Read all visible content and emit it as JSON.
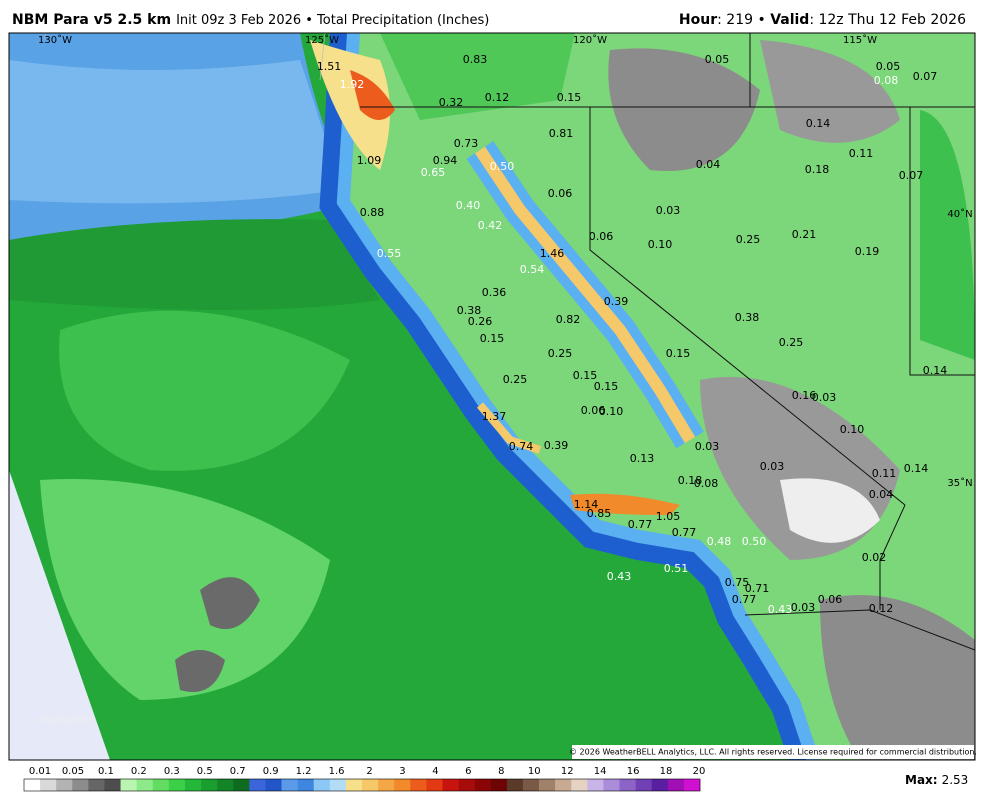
{
  "header": {
    "model": "NBM Para v5 2.5 km",
    "info": "Init 09z 3 Feb 2026 • Total Precipitation (Inches)",
    "hour_key": "Hour",
    "hour": ": 219 • ",
    "valid_key": "Valid",
    "valid": ": 12z Thu 12 Feb 2026"
  },
  "map": {
    "grid_labels": [
      "130˚W",
      "125˚W",
      "120˚W",
      "115˚W",
      "40˚N",
      "35˚N"
    ],
    "labels": [
      "0.83",
      "1.51",
      "1.92",
      "0.32",
      "0.12",
      "0.15",
      "0.05",
      "0.05",
      "0.08",
      "0.07",
      "0.81",
      "0.14",
      "0.73",
      "1.09",
      "0.94",
      "0.65",
      "0.50",
      "0.04",
      "0.18",
      "0.11",
      "0.07",
      "0.06",
      "0.40",
      "0.03",
      "0.88",
      "0.42",
      "0.06",
      "0.10",
      "0.25",
      "0.21",
      "0.19",
      "0.55",
      "1.46",
      "0.54",
      "0.36",
      "0.39",
      "0.38",
      "0.26",
      "0.82",
      "0.38",
      "0.15",
      "0.25",
      "0.15",
      "0.25",
      "0.14",
      "0.25",
      "0.15",
      "0.15",
      "0.16",
      "0.03",
      "0.06",
      "0.10",
      "1.37",
      "0.10",
      "0.74",
      "0.39",
      "0.03",
      "0.13",
      "0.03",
      "0.11",
      "0.14",
      "0.18",
      "0.08",
      "0.04",
      "1.14",
      "0.85",
      "1.05",
      "0.77",
      "0.77",
      "0.48",
      "0.50",
      "0.02",
      "0.43",
      "0.51",
      "0.75",
      "0.71",
      "0.77",
      "0.06",
      "0.43",
      "0.03",
      "0.12"
    ],
    "logo": "WeatherBELL",
    "copyright": "© 2026 WeatherBELL Analytics, LLC. All rights reserved. License required for commercial distribution."
  },
  "colorbar": {
    "labels": [
      "0.01",
      "0.05",
      "0.1",
      "0.2",
      "0.3",
      "0.5",
      "0.7",
      "0.9",
      "1.2",
      "1.6",
      "2",
      "3",
      "4",
      "6",
      "8",
      "10",
      "12",
      "14",
      "16",
      "18",
      "20"
    ],
    "colors": [
      "#ffffff",
      "#d9d9d9",
      "#b3b3b3",
      "#8c8c8c",
      "#666666",
      "#4d4d4d",
      "#b9f5b0",
      "#8ee98a",
      "#63dc63",
      "#3ccf48",
      "#24b83a",
      "#1a9e30",
      "#138427",
      "#0f6b20",
      "#3a66d9",
      "#2256c8",
      "#5a9ae8",
      "#3f86e0",
      "#8cc8f5",
      "#b3dcf7",
      "#f7e08c",
      "#f5c96a",
      "#f5a646",
      "#f08a2a",
      "#ec5c1c",
      "#e23a12",
      "#c8140e",
      "#a80c0a",
      "#8a0606",
      "#6e0404",
      "#5c3a2a",
      "#7a5a46",
      "#a0826a",
      "#c8aa92",
      "#e6d2c2",
      "#c8b4e6",
      "#aa8cd8",
      "#8c64c8",
      "#7040b4",
      "#5a1ea0",
      "#a010b4",
      "#d010d0"
    ],
    "max_key": "Max:",
    "max": "2.53"
  }
}
